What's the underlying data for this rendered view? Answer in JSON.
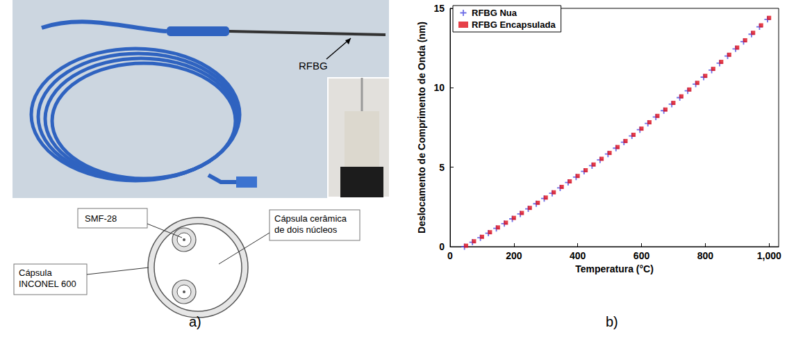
{
  "panel_labels": [
    "a)",
    "b)"
  ],
  "panel_a": {
    "photo_label": "RFBG",
    "schematic": {
      "fiber": "SMF-28",
      "core": "Cápsula cerâmica de dois núcleos",
      "sheath": "Cápsula INCONEL 600"
    }
  },
  "chart_data": {
    "type": "scatter",
    "x_label": "Temperatura (°C)",
    "y_label": "Deslocamento de Comprimento de Onda (nm)",
    "xlim": [
      0,
      1030
    ],
    "xticks": [
      0,
      200,
      400,
      600,
      800,
      1000
    ],
    "ylim": [
      0,
      15
    ],
    "yticks": [
      0,
      5,
      10,
      15
    ],
    "grid": false,
    "legend": "upper left",
    "series": [
      {
        "name": "RFBG Nua",
        "color": "#4a4ae0",
        "marker": "plus",
        "x": [
          45,
          70,
          95,
          120,
          145,
          170,
          195,
          220,
          245,
          270,
          295,
          320,
          345,
          370,
          395,
          420,
          445,
          470,
          495,
          520,
          545,
          570,
          595,
          620,
          645,
          670,
          695,
          720,
          745,
          770,
          795,
          820,
          845,
          870,
          895,
          920,
          945,
          970,
          995
        ],
        "values": [
          0.0,
          0.28,
          0.56,
          0.85,
          1.15,
          1.45,
          1.75,
          2.06,
          2.38,
          2.7,
          3.03,
          3.36,
          3.7,
          4.04,
          4.38,
          4.74,
          5.1,
          5.46,
          5.83,
          6.2,
          6.58,
          6.97,
          7.36,
          7.76,
          8.16,
          8.56,
          8.97,
          9.38,
          9.81,
          10.23,
          10.67,
          11.11,
          11.55,
          12.0,
          12.45,
          12.91,
          13.37,
          13.84,
          14.31
        ]
      },
      {
        "name": "RFBG Encapsulada",
        "color": "#e0101a",
        "marker": "square",
        "x": [
          50,
          75,
          100,
          125,
          150,
          175,
          200,
          225,
          250,
          275,
          300,
          325,
          350,
          375,
          400,
          425,
          450,
          475,
          500,
          525,
          550,
          575,
          600,
          625,
          650,
          675,
          700,
          725,
          750,
          775,
          800,
          825,
          850,
          875,
          900,
          925,
          950,
          975,
          1000
        ],
        "values": [
          0.06,
          0.34,
          0.62,
          0.91,
          1.21,
          1.51,
          1.81,
          2.12,
          2.44,
          2.76,
          3.09,
          3.42,
          3.76,
          4.11,
          4.45,
          4.81,
          5.17,
          5.53,
          5.9,
          6.27,
          6.65,
          7.04,
          7.43,
          7.83,
          8.23,
          8.63,
          9.05,
          9.46,
          9.89,
          10.31,
          10.75,
          11.19,
          11.63,
          12.08,
          12.53,
          12.99,
          13.46,
          13.93,
          14.4
        ]
      }
    ]
  }
}
